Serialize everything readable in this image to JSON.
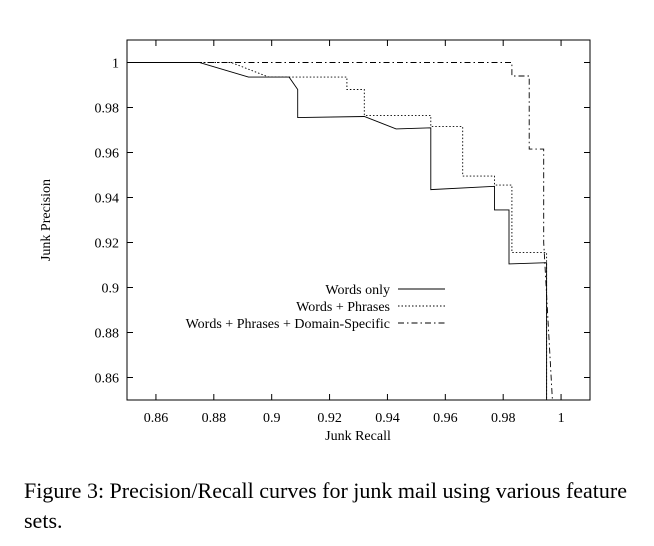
{
  "chart_data": {
    "type": "line",
    "xlabel": "Junk Recall",
    "ylabel": "Junk Precision",
    "xlim": [
      0.85,
      1.01
    ],
    "ylim": [
      0.85,
      1.01
    ],
    "x_ticks": [
      "0.86",
      "0.88",
      "0.9",
      "0.92",
      "0.94",
      "0.96",
      "0.98",
      "1"
    ],
    "y_ticks": [
      "0.86",
      "0.88",
      "0.9",
      "0.92",
      "0.94",
      "0.96",
      "0.98",
      "1"
    ],
    "legend_position": "lower-left",
    "series": [
      {
        "name": "Words only",
        "style": "solid",
        "x": [
          0.85,
          0.875,
          0.892,
          0.906,
          0.909,
          0.909,
          0.932,
          0.943,
          0.955,
          0.955,
          0.977,
          0.977,
          0.982,
          0.982,
          0.995,
          0.995
        ],
        "y": [
          1.0,
          1.0,
          0.9935,
          0.9935,
          0.988,
          0.9755,
          0.976,
          0.9705,
          0.971,
          0.9435,
          0.945,
          0.9345,
          0.9345,
          0.9105,
          0.911,
          0.85
        ]
      },
      {
        "name": "Words + Phrases",
        "style": "dotted",
        "x": [
          0.85,
          0.886,
          0.899,
          0.926,
          0.926,
          0.932,
          0.932,
          0.955,
          0.955,
          0.966,
          0.966,
          0.977,
          0.977,
          0.983,
          0.983,
          0.995,
          0.995
        ],
        "y": [
          1.0,
          1.0,
          0.9935,
          0.9935,
          0.988,
          0.988,
          0.9765,
          0.9765,
          0.9715,
          0.9715,
          0.9495,
          0.9495,
          0.9455,
          0.9455,
          0.9155,
          0.9155,
          0.85
        ]
      },
      {
        "name": "Words + Phrases + Domain-Specific",
        "style": "dash-dot",
        "x": [
          0.85,
          0.983,
          0.983,
          0.989,
          0.989,
          0.994,
          0.994,
          0.997
        ],
        "y": [
          1.0,
          1.0,
          0.994,
          0.994,
          0.9615,
          0.9615,
          0.92,
          0.85
        ]
      }
    ]
  },
  "caption": "Figure 3:  Precision/Recall curves for junk mail using various feature sets."
}
